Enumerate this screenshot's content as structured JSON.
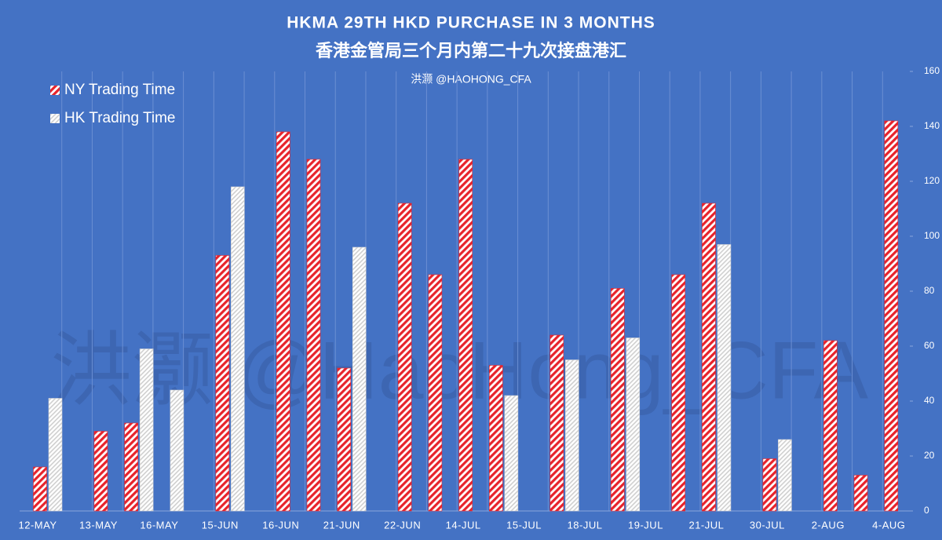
{
  "chart_data": {
    "type": "bar",
    "title": "HKMA 29TH HKD PURCHASE IN 3 MONTHS",
    "subtitle": "香港金管局三个月内第二十九次接盘港汇",
    "source": "洪灏 @HAOHONG_CFA",
    "watermark": "洪灏 @HaoHong_CFA",
    "categories": [
      "12-MAY",
      null,
      "13-MAY",
      null,
      "16-MAY",
      null,
      "15-JUN",
      null,
      "16-JUN",
      null,
      "21-JUN",
      null,
      "22-JUN",
      null,
      "14-JUL",
      null,
      "15-JUL",
      null,
      "18-JUL",
      null,
      "19-JUL",
      null,
      "21-JUL",
      null,
      "30-JUL",
      null,
      "2-AUG",
      null,
      "4-AUG"
    ],
    "series": [
      {
        "name": "NY Trading Time",
        "color": "#e8232b",
        "values": [
          16,
          null,
          29,
          32,
          null,
          null,
          93,
          null,
          138,
          128,
          52,
          null,
          112,
          86,
          128,
          53,
          null,
          64,
          null,
          81,
          null,
          86,
          112,
          null,
          19,
          null,
          62,
          13,
          142
        ]
      },
      {
        "name": "HK Trading Time",
        "color": "#cfcfcf",
        "values": [
          41,
          null,
          null,
          59,
          44,
          null,
          118,
          null,
          null,
          null,
          96,
          null,
          null,
          null,
          null,
          42,
          null,
          55,
          null,
          63,
          null,
          null,
          97,
          null,
          26,
          null,
          null,
          null,
          null
        ]
      }
    ],
    "ylim": [
      0,
      160
    ],
    "yticks": [
      0,
      20,
      40,
      60,
      80,
      100,
      120,
      140,
      160
    ],
    "y_axis_side": "right",
    "legend": "top-left",
    "grid": false
  }
}
